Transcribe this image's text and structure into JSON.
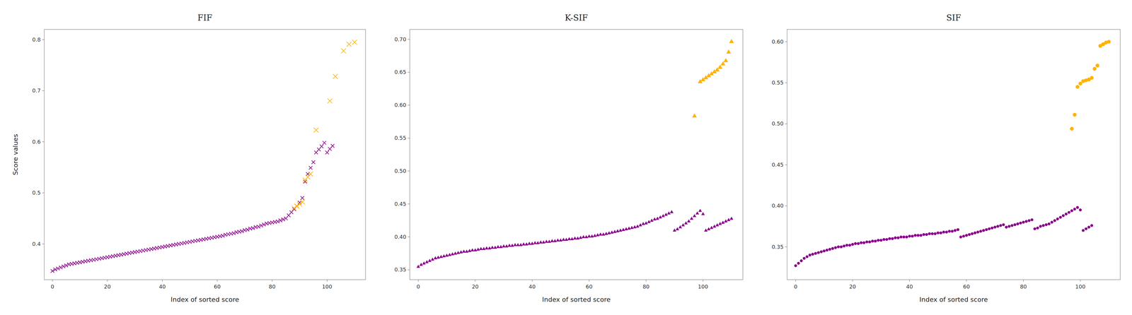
{
  "chart_data": [
    {
      "type": "scatter",
      "title": "FIF",
      "xlabel": "Index of sorted score",
      "ylabel": "Score values",
      "marker": "x",
      "xlim": [
        -3,
        114
      ],
      "xticks": [
        0,
        20,
        40,
        60,
        80,
        100
      ],
      "ylim": [
        0.33,
        0.82
      ],
      "yticks": [
        0.4,
        0.5,
        0.6,
        0.7,
        0.8
      ],
      "series": [
        {
          "color": "#8B008B",
          "x": [
            0,
            1,
            2,
            3,
            4,
            5,
            6,
            7,
            8,
            9,
            10,
            11,
            12,
            13,
            14,
            15,
            16,
            17,
            18,
            19,
            20,
            21,
            22,
            23,
            24,
            25,
            26,
            27,
            28,
            29,
            30,
            31,
            32,
            33,
            34,
            35,
            36,
            37,
            38,
            39,
            40,
            41,
            42,
            43,
            44,
            45,
            46,
            47,
            48,
            49,
            50,
            51,
            52,
            53,
            54,
            55,
            56,
            57,
            58,
            59,
            60,
            61,
            62,
            63,
            64,
            65,
            66,
            67,
            68,
            69,
            70,
            71,
            72,
            73,
            74,
            75,
            76,
            77,
            78,
            79,
            80,
            81,
            82,
            83,
            84,
            85,
            86,
            87,
            88,
            89,
            90,
            91,
            92,
            93,
            94,
            95,
            96,
            97,
            98,
            99,
            100,
            101,
            102
          ],
          "values": [
            0.347,
            0.35,
            0.352,
            0.354,
            0.356,
            0.358,
            0.36,
            0.361,
            0.362,
            0.363,
            0.364,
            0.365,
            0.366,
            0.367,
            0.368,
            0.369,
            0.37,
            0.371,
            0.372,
            0.373,
            0.374,
            0.375,
            0.376,
            0.377,
            0.378,
            0.379,
            0.38,
            0.381,
            0.382,
            0.383,
            0.384,
            0.385,
            0.386,
            0.387,
            0.388,
            0.389,
            0.39,
            0.391,
            0.392,
            0.393,
            0.394,
            0.395,
            0.396,
            0.397,
            0.398,
            0.399,
            0.4,
            0.401,
            0.402,
            0.403,
            0.404,
            0.405,
            0.406,
            0.407,
            0.408,
            0.409,
            0.41,
            0.411,
            0.412,
            0.413,
            0.414,
            0.415,
            0.416,
            0.418,
            0.419,
            0.42,
            0.421,
            0.423,
            0.424,
            0.425,
            0.427,
            0.428,
            0.43,
            0.431,
            0.433,
            0.434,
            0.436,
            0.438,
            0.44,
            0.441,
            0.442,
            0.443,
            0.444,
            0.446,
            0.448,
            0.45,
            0.456,
            0.462,
            0.468,
            0.474,
            0.481,
            0.49,
            0.522,
            0.537,
            0.549,
            0.56,
            0.579,
            0.585,
            0.591,
            0.598,
            0.579,
            0.586,
            0.592
          ]
        },
        {
          "color": "#FFB300",
          "x": [
            88,
            89,
            90,
            91,
            92,
            93,
            94,
            96,
            101,
            103,
            106,
            108,
            110
          ],
          "values": [
            0.47,
            0.474,
            0.478,
            0.482,
            0.525,
            0.531,
            0.537,
            0.623,
            0.68,
            0.728,
            0.778,
            0.791,
            0.795
          ]
        }
      ]
    },
    {
      "type": "scatter",
      "title": "K-SIF",
      "xlabel": "Index of sorted score",
      "marker": "triangle",
      "xlim": [
        -3,
        114
      ],
      "xticks": [
        0,
        20,
        40,
        60,
        80,
        100
      ],
      "ylim": [
        0.335,
        0.715
      ],
      "yticks": [
        0.35,
        {
          "value": 0.4,
          "label": "0.40"
        },
        0.45,
        {
          "value": 0.5,
          "label": "0.50"
        },
        0.55,
        {
          "value": 0.6,
          "label": "0.60"
        },
        0.65,
        {
          "value": 0.7,
          "label": "0.70"
        }
      ],
      "series": [
        {
          "color": "#8B008B",
          "x": [
            0,
            1,
            2,
            3,
            4,
            5,
            6,
            7,
            8,
            9,
            10,
            11,
            12,
            13,
            14,
            15,
            16,
            17,
            18,
            19,
            20,
            21,
            22,
            23,
            24,
            25,
            26,
            27,
            28,
            29,
            30,
            31,
            32,
            33,
            34,
            35,
            36,
            37,
            38,
            39,
            40,
            41,
            42,
            43,
            44,
            45,
            46,
            47,
            48,
            49,
            50,
            51,
            52,
            53,
            54,
            55,
            56,
            57,
            58,
            59,
            60,
            61,
            62,
            63,
            64,
            65,
            66,
            67,
            68,
            69,
            70,
            71,
            72,
            73,
            74,
            75,
            76,
            77,
            78,
            79,
            80,
            81,
            82,
            83,
            84,
            85,
            86,
            87,
            88,
            89,
            90,
            91,
            92,
            93,
            94,
            95,
            96,
            97,
            98,
            99,
            100,
            101,
            102,
            103,
            104,
            105,
            106,
            107,
            108,
            109,
            110
          ],
          "values": [
            0.355,
            0.358,
            0.36,
            0.362,
            0.364,
            0.366,
            0.368,
            0.369,
            0.37,
            0.371,
            0.372,
            0.373,
            0.374,
            0.375,
            0.376,
            0.377,
            0.378,
            0.378,
            0.379,
            0.38,
            0.38,
            0.381,
            0.382,
            0.382,
            0.383,
            0.383,
            0.384,
            0.384,
            0.385,
            0.385,
            0.386,
            0.386,
            0.387,
            0.387,
            0.388,
            0.388,
            0.388,
            0.389,
            0.389,
            0.39,
            0.39,
            0.391,
            0.391,
            0.392,
            0.392,
            0.393,
            0.393,
            0.394,
            0.394,
            0.395,
            0.395,
            0.396,
            0.396,
            0.397,
            0.397,
            0.398,
            0.398,
            0.399,
            0.4,
            0.4,
            0.401,
            0.401,
            0.402,
            0.403,
            0.404,
            0.404,
            0.405,
            0.406,
            0.407,
            0.408,
            0.409,
            0.41,
            0.411,
            0.412,
            0.413,
            0.414,
            0.415,
            0.416,
            0.418,
            0.42,
            0.421,
            0.423,
            0.425,
            0.427,
            0.428,
            0.43,
            0.432,
            0.434,
            0.436,
            0.438,
            0.41,
            0.412,
            0.415,
            0.418,
            0.421,
            0.424,
            0.428,
            0.432,
            0.436,
            0.44,
            0.435,
            0.41,
            0.412,
            0.414,
            0.416,
            0.418,
            0.42,
            0.422,
            0.424,
            0.426,
            0.428
          ]
        },
        {
          "color": "#FFB300",
          "x": [
            97,
            99,
            100,
            101,
            102,
            103,
            104,
            105,
            106,
            107,
            108,
            109,
            110
          ],
          "values": [
            0.584,
            0.636,
            0.639,
            0.642,
            0.645,
            0.648,
            0.651,
            0.654,
            0.658,
            0.663,
            0.668,
            0.681,
            0.697
          ]
        }
      ]
    },
    {
      "type": "scatter",
      "title": "SIF",
      "xlabel": "Index of sorted score",
      "marker": "circle",
      "xlim": [
        -3,
        114
      ],
      "xticks": [
        0,
        20,
        40,
        60,
        80,
        100
      ],
      "ylim": [
        0.31,
        0.615
      ],
      "yticks": [
        0.35,
        {
          "value": 0.4,
          "label": "0.40"
        },
        0.45,
        {
          "value": 0.5,
          "label": "0.50"
        },
        0.55,
        {
          "value": 0.6,
          "label": "0.60"
        }
      ],
      "series": [
        {
          "color": "#8B008B",
          "x": [
            0,
            1,
            2,
            3,
            4,
            5,
            6,
            7,
            8,
            9,
            10,
            11,
            12,
            13,
            14,
            15,
            16,
            17,
            18,
            19,
            20,
            21,
            22,
            23,
            24,
            25,
            26,
            27,
            28,
            29,
            30,
            31,
            32,
            33,
            34,
            35,
            36,
            37,
            38,
            39,
            40,
            41,
            42,
            43,
            44,
            45,
            46,
            47,
            48,
            49,
            50,
            51,
            52,
            53,
            54,
            55,
            56,
            57,
            58,
            59,
            60,
            61,
            62,
            63,
            64,
            65,
            66,
            67,
            68,
            69,
            70,
            71,
            72,
            73,
            74,
            75,
            76,
            77,
            78,
            79,
            80,
            81,
            82,
            83,
            84,
            85,
            86,
            87,
            88,
            89,
            90,
            91,
            92,
            93,
            94,
            95,
            96,
            97,
            98,
            99,
            100,
            101,
            102,
            103,
            104
          ],
          "values": [
            0.327,
            0.33,
            0.333,
            0.336,
            0.338,
            0.34,
            0.341,
            0.342,
            0.343,
            0.344,
            0.345,
            0.346,
            0.347,
            0.348,
            0.349,
            0.35,
            0.35,
            0.351,
            0.352,
            0.352,
            0.353,
            0.354,
            0.354,
            0.355,
            0.355,
            0.356,
            0.356,
            0.357,
            0.357,
            0.358,
            0.358,
            0.359,
            0.359,
            0.36,
            0.36,
            0.361,
            0.361,
            0.362,
            0.362,
            0.362,
            0.363,
            0.363,
            0.364,
            0.364,
            0.364,
            0.365,
            0.365,
            0.366,
            0.366,
            0.366,
            0.367,
            0.367,
            0.368,
            0.368,
            0.369,
            0.369,
            0.37,
            0.371,
            0.362,
            0.363,
            0.364,
            0.365,
            0.366,
            0.367,
            0.368,
            0.369,
            0.37,
            0.371,
            0.372,
            0.373,
            0.374,
            0.375,
            0.376,
            0.377,
            0.374,
            0.375,
            0.376,
            0.377,
            0.378,
            0.379,
            0.38,
            0.381,
            0.382,
            0.383,
            0.372,
            0.373,
            0.375,
            0.376,
            0.377,
            0.378,
            0.38,
            0.382,
            0.384,
            0.386,
            0.388,
            0.39,
            0.392,
            0.394,
            0.396,
            0.398,
            0.395,
            0.37,
            0.372,
            0.374,
            0.376
          ]
        },
        {
          "color": "#FFB300",
          "x": [
            97,
            98,
            99,
            100,
            101,
            102,
            103,
            104,
            105,
            106,
            107,
            108,
            109,
            110
          ],
          "values": [
            0.494,
            0.511,
            0.545,
            0.549,
            0.552,
            0.553,
            0.554,
            0.556,
            0.567,
            0.571,
            0.595,
            0.597,
            0.599,
            0.6
          ]
        }
      ]
    }
  ]
}
